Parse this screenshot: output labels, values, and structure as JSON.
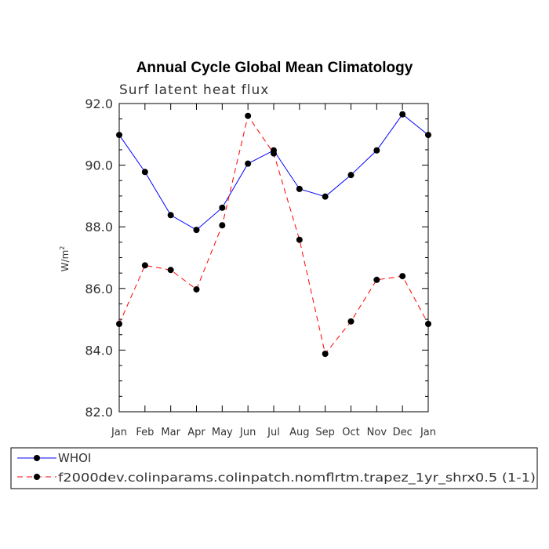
{
  "chart_data": {
    "type": "line",
    "title": "Annual Cycle Global Mean Climatology",
    "subtitle": "Surf latent heat flux",
    "ylabel": "W/m",
    "ylabel_sup": "2",
    "xlabel": "",
    "categories": [
      "Jan",
      "Feb",
      "Mar",
      "Apr",
      "May",
      "Jun",
      "Jul",
      "Aug",
      "Sep",
      "Oct",
      "Nov",
      "Dec",
      "Jan"
    ],
    "ylim": [
      82.0,
      92.0
    ],
    "yticks": [
      "82.0",
      "84.0",
      "86.0",
      "88.0",
      "90.0",
      "92.0"
    ],
    "grid": false,
    "legend_position": "bottom",
    "series": [
      {
        "name": "WHOI",
        "color": "#0000ff",
        "style": "solid",
        "values": [
          90.98,
          89.78,
          88.38,
          87.9,
          88.62,
          90.05,
          90.48,
          89.23,
          88.98,
          89.68,
          90.48,
          91.65,
          90.98
        ]
      },
      {
        "name": "f2000dev.colinparams.colinpatch.nomflrtm.trapez_1yr_shrx0.5 (1-1)",
        "color": "#ff0000",
        "style": "dashed",
        "values": [
          84.85,
          86.75,
          86.6,
          85.97,
          88.05,
          91.6,
          90.38,
          87.58,
          83.88,
          84.93,
          86.28,
          86.4,
          84.85
        ]
      }
    ]
  }
}
